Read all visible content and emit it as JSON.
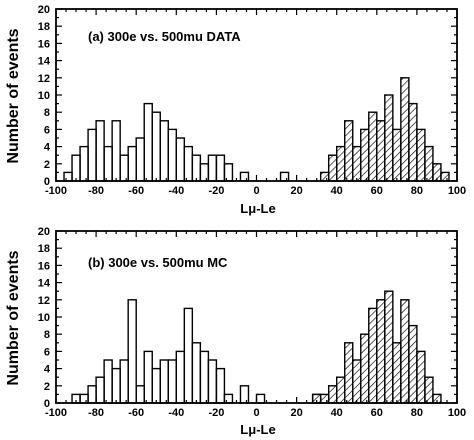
{
  "chart_data": [
    {
      "type": "histogram",
      "title": "(a) 300e vs. 500mu DATA",
      "xlabel": "Lμ-Le",
      "ylabel": "Number of events",
      "xlim": [
        -100,
        100
      ],
      "ylim": [
        0,
        20
      ],
      "xticks": [
        -100,
        -80,
        -60,
        -40,
        -20,
        0,
        20,
        40,
        60,
        80,
        100
      ],
      "yticks": [
        0,
        2,
        4,
        6,
        8,
        10,
        12,
        14,
        16,
        18,
        20
      ],
      "bin_width": 4,
      "grid": false,
      "legend": false,
      "series": [
        {
          "style": "open",
          "bins": [
            {
              "x0": -96,
              "value": 1
            },
            {
              "x0": -92,
              "value": 3
            },
            {
              "x0": -88,
              "value": 4
            },
            {
              "x0": -84,
              "value": 6
            },
            {
              "x0": -80,
              "value": 7
            },
            {
              "x0": -76,
              "value": 4
            },
            {
              "x0": -72,
              "value": 7
            },
            {
              "x0": -68,
              "value": 3
            },
            {
              "x0": -64,
              "value": 4
            },
            {
              "x0": -60,
              "value": 5
            },
            {
              "x0": -56,
              "value": 9
            },
            {
              "x0": -52,
              "value": 8
            },
            {
              "x0": -48,
              "value": 7
            },
            {
              "x0": -44,
              "value": 6
            },
            {
              "x0": -40,
              "value": 5
            },
            {
              "x0": -36,
              "value": 4
            },
            {
              "x0": -32,
              "value": 3
            },
            {
              "x0": -28,
              "value": 2
            },
            {
              "x0": -24,
              "value": 3
            },
            {
              "x0": -20,
              "value": 3
            },
            {
              "x0": -16,
              "value": 2
            },
            {
              "x0": -12,
              "value": 0
            },
            {
              "x0": -8,
              "value": 1
            },
            {
              "x0": 12,
              "value": 1
            }
          ]
        },
        {
          "style": "hatched",
          "bins": [
            {
              "x0": 32,
              "value": 1
            },
            {
              "x0": 36,
              "value": 3
            },
            {
              "x0": 40,
              "value": 4
            },
            {
              "x0": 44,
              "value": 7
            },
            {
              "x0": 48,
              "value": 4
            },
            {
              "x0": 52,
              "value": 6
            },
            {
              "x0": 56,
              "value": 8
            },
            {
              "x0": 60,
              "value": 7
            },
            {
              "x0": 64,
              "value": 10
            },
            {
              "x0": 68,
              "value": 6
            },
            {
              "x0": 72,
              "value": 12
            },
            {
              "x0": 76,
              "value": 9
            },
            {
              "x0": 80,
              "value": 6
            },
            {
              "x0": 84,
              "value": 4
            },
            {
              "x0": 88,
              "value": 2
            },
            {
              "x0": 92,
              "value": 1
            }
          ]
        }
      ]
    },
    {
      "type": "histogram",
      "title": "(b) 300e vs. 500mu MC",
      "xlabel": "Lμ-Le",
      "ylabel": "Number of events",
      "xlim": [
        -100,
        100
      ],
      "ylim": [
        0,
        20
      ],
      "xticks": [
        -100,
        -80,
        -60,
        -40,
        -20,
        0,
        20,
        40,
        60,
        80,
        100
      ],
      "yticks": [
        0,
        2,
        4,
        6,
        8,
        10,
        12,
        14,
        16,
        18,
        20
      ],
      "bin_width": 4,
      "grid": false,
      "legend": false,
      "series": [
        {
          "style": "open",
          "bins": [
            {
              "x0": -92,
              "value": 1
            },
            {
              "x0": -88,
              "value": 1
            },
            {
              "x0": -84,
              "value": 2
            },
            {
              "x0": -80,
              "value": 3
            },
            {
              "x0": -76,
              "value": 5
            },
            {
              "x0": -72,
              "value": 4
            },
            {
              "x0": -68,
              "value": 5
            },
            {
              "x0": -64,
              "value": 12
            },
            {
              "x0": -60,
              "value": 2
            },
            {
              "x0": -56,
              "value": 6
            },
            {
              "x0": -52,
              "value": 4
            },
            {
              "x0": -48,
              "value": 5
            },
            {
              "x0": -44,
              "value": 5
            },
            {
              "x0": -40,
              "value": 6
            },
            {
              "x0": -36,
              "value": 11
            },
            {
              "x0": -32,
              "value": 7
            },
            {
              "x0": -28,
              "value": 6
            },
            {
              "x0": -24,
              "value": 5
            },
            {
              "x0": -20,
              "value": 4
            },
            {
              "x0": -16,
              "value": 1
            },
            {
              "x0": -8,
              "value": 2
            },
            {
              "x0": 0,
              "value": 1
            },
            {
              "x0": 28,
              "value": 1
            }
          ]
        },
        {
          "style": "hatched",
          "bins": [
            {
              "x0": 28,
              "value": 1
            },
            {
              "x0": 32,
              "value": 1
            },
            {
              "x0": 36,
              "value": 2
            },
            {
              "x0": 40,
              "value": 3
            },
            {
              "x0": 44,
              "value": 7
            },
            {
              "x0": 48,
              "value": 5
            },
            {
              "x0": 52,
              "value": 8
            },
            {
              "x0": 56,
              "value": 11
            },
            {
              "x0": 60,
              "value": 12
            },
            {
              "x0": 64,
              "value": 13
            },
            {
              "x0": 68,
              "value": 7
            },
            {
              "x0": 72,
              "value": 12
            },
            {
              "x0": 76,
              "value": 9
            },
            {
              "x0": 80,
              "value": 6
            },
            {
              "x0": 84,
              "value": 3
            },
            {
              "x0": 88,
              "value": 1
            }
          ]
        }
      ]
    }
  ]
}
